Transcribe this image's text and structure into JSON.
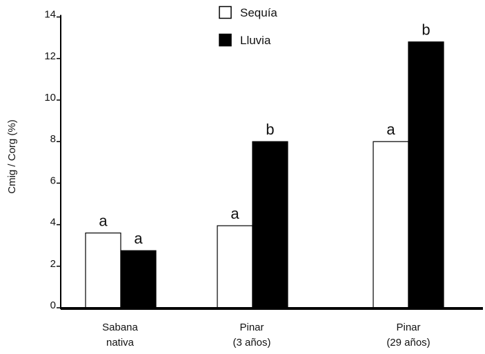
{
  "chart_data": {
    "type": "bar",
    "title": "",
    "xlabel": "",
    "ylabel": "Cmig / Corg (%)",
    "ylim": [
      0,
      14
    ],
    "yticks": [
      0,
      2,
      4,
      6,
      8,
      10,
      12,
      14
    ],
    "grid": false,
    "legend_position": "top-center",
    "categories": [
      [
        "Sabana",
        "nativa"
      ],
      [
        "Pinar",
        "(3 años)"
      ],
      [
        "Pinar",
        "(29 años)"
      ]
    ],
    "series": [
      {
        "name": "Sequía",
        "fill": "#ffffff",
        "stroke": "#000000",
        "values": [
          3.6,
          3.95,
          8.0
        ],
        "labels": [
          "a",
          "a",
          "a"
        ]
      },
      {
        "name": "Lluvia",
        "fill": "#000000",
        "stroke": "#000000",
        "values": [
          2.75,
          8.0,
          12.8
        ],
        "labels": [
          "a",
          "b",
          "b"
        ]
      }
    ]
  }
}
